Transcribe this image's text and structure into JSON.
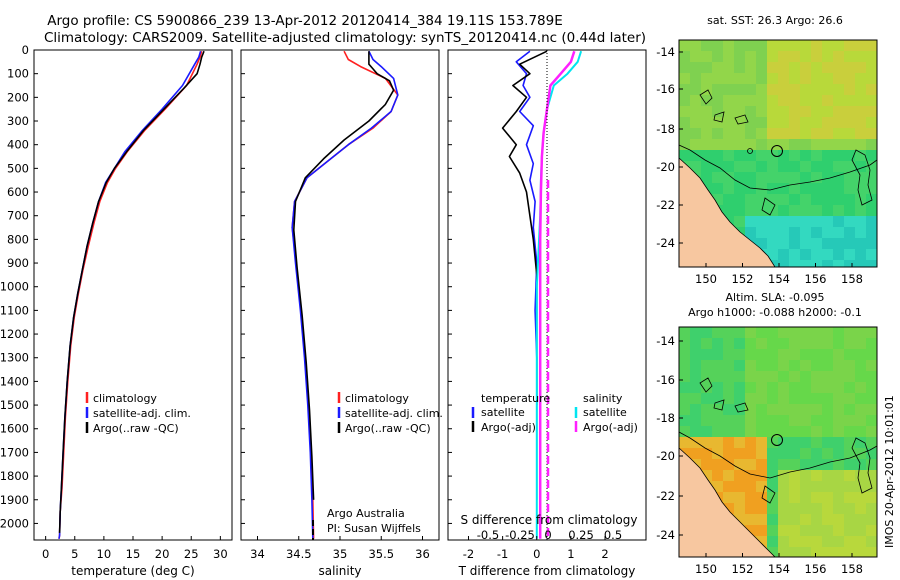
{
  "header": {
    "line1": "Argo profile: CS 5900866_239 13-Apr-2012 20120414_384 19.11S 153.789E",
    "line2": "Climatology: CARS2009. Satellite-adjusted climatology: synTS_20120414.nc (0.44d later)"
  },
  "colors": {
    "climatology": "#ff2020",
    "satellite": "#1a1aff",
    "argo": "#000000",
    "sal_satellite": "#00e5f0",
    "sal_argo": "#ff20ff",
    "land": "#f7c7a0"
  },
  "y_axis": {
    "ticks": [
      "0",
      "100",
      "200",
      "300",
      "400",
      "500",
      "600",
      "700",
      "800",
      "900",
      "1000",
      "1100",
      "1200",
      "1300",
      "1400",
      "1500",
      "1600",
      "1700",
      "1800",
      "1900",
      "2000"
    ]
  },
  "chart_data": [
    {
      "type": "line",
      "id": "temperature",
      "xlabel": "temperature (deg C)",
      "xlim": [
        -2,
        32
      ],
      "ylim": [
        2070,
        0
      ],
      "xticks": [
        "0",
        "5",
        "10",
        "15",
        "20",
        "25",
        "30"
      ],
      "legend": [
        "climatology",
        "satellite-adj. clim.",
        "Argo(..raw -QC)"
      ],
      "series": [
        {
          "name": "climatology",
          "x": [
            26.8,
            26.5,
            26.0,
            24.2,
            20.5,
            17.0,
            14.0,
            12.0,
            10.6,
            9.3,
            8.3,
            7.3,
            6.4,
            5.6,
            4.9,
            4.3,
            3.8,
            3.4,
            3.1,
            2.8,
            2.5,
            2.4,
            2.3
          ],
          "y": [
            5,
            30,
            60,
            150,
            250,
            340,
            430,
            500,
            560,
            640,
            730,
            830,
            930,
            1030,
            1130,
            1250,
            1400,
            1550,
            1700,
            1850,
            1950,
            2050,
            2065
          ]
        },
        {
          "name": "satellite-adj. clim.",
          "x": [
            26.6,
            26.3,
            25.6,
            23.5,
            20.0,
            16.6,
            13.6,
            11.8,
            10.3,
            9.1,
            8.1,
            7.1,
            6.3,
            5.5,
            4.8,
            4.2,
            3.7,
            3.3,
            3.0,
            2.7,
            2.5,
            2.4,
            2.3
          ],
          "y": [
            5,
            30,
            60,
            150,
            250,
            340,
            430,
            500,
            560,
            640,
            730,
            830,
            930,
            1030,
            1130,
            1250,
            1400,
            1550,
            1700,
            1850,
            1950,
            2050,
            2065
          ]
        },
        {
          "name": "Argo(..raw -QC)",
          "x": [
            27.2,
            26.8,
            26.5,
            26.0,
            23.8,
            20.3,
            16.8,
            13.9,
            11.8,
            10.4,
            9.1,
            8.1,
            7.1,
            6.3,
            5.5,
            4.8,
            4.2,
            3.7,
            3.3,
            3.0,
            2.7,
            2.5,
            2.4
          ],
          "y": [
            5,
            30,
            60,
            100,
            160,
            250,
            340,
            430,
            500,
            560,
            640,
            730,
            830,
            930,
            1030,
            1130,
            1250,
            1400,
            1550,
            1700,
            1850,
            1950,
            2040
          ]
        }
      ]
    },
    {
      "type": "line",
      "id": "salinity",
      "xlabel": "salinity",
      "xlim": [
        33.8,
        36.2
      ],
      "ylim": [
        2070,
        0
      ],
      "xticks": [
        "34",
        "34.5",
        "35",
        "35.5",
        "36"
      ],
      "legend": [
        "climatology",
        "satellite-adj. clim.",
        "Argo(..raw -QC)"
      ],
      "series": [
        {
          "name": "climatology",
          "x": [
            35.05,
            35.1,
            35.25,
            35.55,
            35.7,
            35.62,
            35.4,
            35.1,
            34.85,
            34.6,
            34.45,
            34.42,
            34.47,
            34.53,
            34.58,
            34.62,
            34.65,
            34.67,
            34.68
          ],
          "y": [
            5,
            40,
            70,
            120,
            190,
            260,
            330,
            400,
            470,
            540,
            640,
            750,
            900,
            1100,
            1300,
            1500,
            1700,
            1900,
            2065
          ]
        },
        {
          "name": "satellite-adj. clim.",
          "x": [
            35.35,
            35.4,
            35.5,
            35.65,
            35.7,
            35.62,
            35.38,
            35.1,
            34.85,
            34.6,
            34.45,
            34.42,
            34.46,
            34.52,
            34.57,
            34.61,
            34.64,
            34.66,
            34.67
          ],
          "y": [
            5,
            40,
            70,
            120,
            190,
            260,
            330,
            400,
            470,
            540,
            640,
            750,
            900,
            1100,
            1300,
            1500,
            1700,
            1900,
            2065
          ]
        },
        {
          "name": "Argo(..raw -QC)",
          "x": [
            35.35,
            35.35,
            35.35,
            35.4,
            35.45,
            35.6,
            35.65,
            35.55,
            35.35,
            35.05,
            34.8,
            34.58,
            34.46,
            34.44,
            34.48,
            34.54,
            34.59,
            34.63,
            34.66,
            34.68
          ],
          "y": [
            5,
            40,
            60,
            80,
            100,
            130,
            170,
            230,
            300,
            380,
            460,
            540,
            640,
            760,
            920,
            1120,
            1320,
            1520,
            1720,
            1900
          ]
        }
      ]
    },
    {
      "type": "line",
      "id": "difference",
      "xlabel": "T difference from climatology",
      "xlabel2": "S difference from climatology",
      "xlim": [
        -2.6,
        3.2
      ],
      "ylim": [
        2070,
        0
      ],
      "xticks": [
        "-2",
        "-1",
        "0",
        "1",
        "2"
      ],
      "xticks_salinity": [
        "-0.5",
        "-0.25",
        "0",
        "0.25",
        "0.5"
      ],
      "legend_titles": [
        "temperature",
        "salinity"
      ],
      "legend": [
        "satellite",
        "Argo(-adj)",
        "satellite",
        "Argo(-adj)"
      ],
      "series": [
        {
          "name": "temperature satellite",
          "x": [
            -0.2,
            -0.6,
            -0.3,
            -0.4,
            -0.2,
            -0.5,
            -0.1,
            -0.3,
            -0.1,
            -0.2,
            -0.05,
            -0.1,
            0.0,
            -0.05,
            0.0,
            0.0,
            0.0,
            0.0
          ],
          "y": [
            5,
            50,
            100,
            150,
            200,
            260,
            320,
            400,
            480,
            550,
            640,
            750,
            900,
            1100,
            1300,
            1500,
            1700,
            1900
          ]
        },
        {
          "name": "temperature Argo(-adj)",
          "x": [
            0.3,
            -0.5,
            -0.2,
            -0.7,
            -0.3,
            -0.6,
            -1.0,
            -0.6,
            -0.8,
            -0.5,
            -0.3,
            -0.2,
            -0.1,
            0.0,
            0.0,
            0.0,
            0.0
          ],
          "y": [
            5,
            60,
            100,
            150,
            200,
            260,
            330,
            400,
            450,
            520,
            600,
            700,
            800,
            950,
            1100,
            1300,
            1500
          ]
        },
        {
          "name": "salinity satellite",
          "x": [
            1.3,
            1.2,
            0.9,
            0.5,
            0.3,
            0.2,
            0.15,
            0.12,
            0.1,
            0.05,
            0.0,
            0.0,
            0.0,
            0.0
          ],
          "y": [
            5,
            50,
            100,
            150,
            250,
            350,
            450,
            550,
            700,
            850,
            1000,
            1300,
            1600,
            2065
          ]
        },
        {
          "name": "salinity Argo(-adj)",
          "x": [
            1.1,
            1.0,
            0.7,
            0.4,
            0.3,
            0.2,
            0.15,
            0.12,
            0.1,
            0.1,
            0.1,
            0.1
          ],
          "y": [
            5,
            50,
            100,
            150,
            250,
            350,
            450,
            600,
            800,
            1100,
            1500,
            2065
          ]
        }
      ]
    },
    {
      "type": "heatmap",
      "id": "sst-map",
      "title": "sat. SST: 26.3 Argo: 26.6",
      "xticks": [
        "150",
        "152",
        "154",
        "156",
        "158"
      ],
      "yticks": [
        "-14",
        "-16",
        "-18",
        "-20",
        "-22",
        "-24"
      ]
    },
    {
      "type": "heatmap",
      "id": "sla-map",
      "title_line1": "Altim. SLA: -0.095",
      "title_line2": "Argo h1000: -0.088 h2000: -0.1",
      "xticks": [
        "150",
        "152",
        "154",
        "156",
        "158"
      ],
      "yticks": [
        "-14",
        "-16",
        "-18",
        "-20",
        "-22",
        "-24"
      ]
    }
  ],
  "annotations": {
    "credit1": "Argo Australia",
    "credit2": "PI: Susan Wijffels",
    "imos_stamp": "IMOS 20-Apr-2012 10:01:01"
  }
}
